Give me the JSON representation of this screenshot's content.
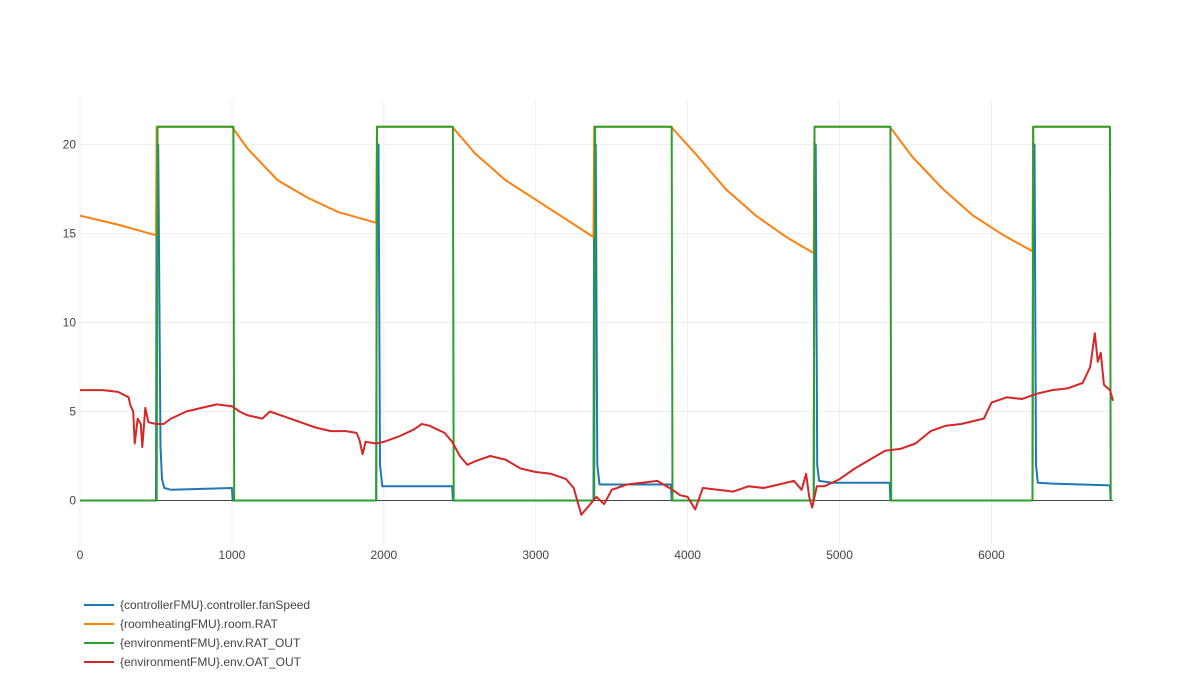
{
  "chart_data": {
    "type": "line",
    "title": "",
    "xlabel": "",
    "ylabel": "",
    "xlim": [
      0,
      6800
    ],
    "ylim": [
      -2.5,
      22.5
    ],
    "xticks": [
      0,
      1000,
      2000,
      3000,
      4000,
      5000,
      6000
    ],
    "xtick_labels": [
      "0",
      "1000",
      "2000",
      "3000",
      "4000",
      "5000",
      "6000"
    ],
    "yticks": [
      0,
      5,
      10,
      15,
      20
    ],
    "ytick_labels": [
      "0",
      "5",
      "10",
      "15",
      "20"
    ],
    "grid": true,
    "legend_position": "bottom-left",
    "series": [
      {
        "name": "{controllerFMU}.controller.fanSpeed",
        "color": "#1f77b4",
        "points": [
          [
            0,
            0
          ],
          [
            500,
            0
          ],
          [
            505,
            20
          ],
          [
            515,
            20
          ],
          [
            530,
            3
          ],
          [
            540,
            1.2
          ],
          [
            555,
            0.7
          ],
          [
            600,
            0.6
          ],
          [
            1000,
            0.7
          ],
          [
            1005,
            0
          ],
          [
            1950,
            0
          ],
          [
            1955,
            20
          ],
          [
            1965,
            20
          ],
          [
            1975,
            2
          ],
          [
            1990,
            0.8
          ],
          [
            2050,
            0.8
          ],
          [
            2450,
            0.8
          ],
          [
            2455,
            0
          ],
          [
            3380,
            0
          ],
          [
            3385,
            20
          ],
          [
            3395,
            20
          ],
          [
            3405,
            2
          ],
          [
            3420,
            0.9
          ],
          [
            3500,
            0.9
          ],
          [
            3890,
            0.9
          ],
          [
            3895,
            0
          ],
          [
            4830,
            0
          ],
          [
            4835,
            20
          ],
          [
            4843,
            20
          ],
          [
            4853,
            2
          ],
          [
            4865,
            1.1
          ],
          [
            4950,
            1.0
          ],
          [
            5330,
            1.0
          ],
          [
            5335,
            0
          ],
          [
            6270,
            0
          ],
          [
            6275,
            20
          ],
          [
            6283,
            20
          ],
          [
            6293,
            2
          ],
          [
            6305,
            1.0
          ],
          [
            6400,
            0.95
          ],
          [
            6780,
            0.85
          ],
          [
            6785,
            0
          ]
        ]
      },
      {
        "name": "{roomheatingFMU}.room.RAT",
        "color": "#ff7f0e",
        "points": [
          [
            0,
            16
          ],
          [
            250,
            15.5
          ],
          [
            500,
            14.9
          ],
          [
            505,
            21
          ],
          [
            1000,
            21
          ],
          [
            1100,
            19.8
          ],
          [
            1300,
            18
          ],
          [
            1500,
            17
          ],
          [
            1700,
            16.2
          ],
          [
            1950,
            15.6
          ],
          [
            1955,
            21
          ],
          [
            2450,
            21
          ],
          [
            2600,
            19.5
          ],
          [
            2800,
            18
          ],
          [
            3000,
            16.9
          ],
          [
            3200,
            15.8
          ],
          [
            3380,
            14.8
          ],
          [
            3385,
            21
          ],
          [
            3890,
            21
          ],
          [
            4050,
            19.5
          ],
          [
            4250,
            17.5
          ],
          [
            4450,
            16
          ],
          [
            4650,
            14.8
          ],
          [
            4830,
            13.9
          ],
          [
            4835,
            21
          ],
          [
            5330,
            21
          ],
          [
            5480,
            19.3
          ],
          [
            5680,
            17.5
          ],
          [
            5880,
            16
          ],
          [
            6080,
            14.9
          ],
          [
            6270,
            14.0
          ],
          [
            6275,
            21
          ],
          [
            6780,
            21
          ]
        ]
      },
      {
        "name": "{environmentFMU}.env.RAT_OUT",
        "color": "#2ca02c",
        "points": [
          [
            0,
            0
          ],
          [
            505,
            0
          ],
          [
            510,
            21
          ],
          [
            1010,
            21
          ],
          [
            1015,
            0
          ],
          [
            1950,
            0
          ],
          [
            1955,
            21
          ],
          [
            2455,
            21
          ],
          [
            2460,
            0
          ],
          [
            3385,
            0
          ],
          [
            3390,
            21
          ],
          [
            3895,
            21
          ],
          [
            3900,
            0
          ],
          [
            4830,
            0
          ],
          [
            4835,
            21
          ],
          [
            5335,
            21
          ],
          [
            5340,
            0
          ],
          [
            6270,
            0
          ],
          [
            6275,
            21
          ],
          [
            6780,
            21
          ],
          [
            6785,
            0
          ]
        ]
      },
      {
        "name": "{environmentFMU}.env.OAT_OUT",
        "color": "#d62728",
        "points": [
          [
            0,
            6.2
          ],
          [
            150,
            6.2
          ],
          [
            250,
            6.1
          ],
          [
            320,
            5.8
          ],
          [
            330,
            5.4
          ],
          [
            350,
            5.0
          ],
          [
            360,
            3.2
          ],
          [
            380,
            4.6
          ],
          [
            400,
            4.3
          ],
          [
            410,
            3.0
          ],
          [
            430,
            5.2
          ],
          [
            450,
            4.4
          ],
          [
            500,
            4.3
          ],
          [
            550,
            4.3
          ],
          [
            600,
            4.6
          ],
          [
            700,
            5.0
          ],
          [
            800,
            5.2
          ],
          [
            900,
            5.4
          ],
          [
            1000,
            5.3
          ],
          [
            1050,
            5.0
          ],
          [
            1100,
            4.8
          ],
          [
            1200,
            4.6
          ],
          [
            1250,
            5.0
          ],
          [
            1350,
            4.7
          ],
          [
            1450,
            4.4
          ],
          [
            1550,
            4.1
          ],
          [
            1650,
            3.9
          ],
          [
            1750,
            3.9
          ],
          [
            1820,
            3.8
          ],
          [
            1840,
            3.4
          ],
          [
            1860,
            2.6
          ],
          [
            1880,
            3.3
          ],
          [
            1950,
            3.2
          ],
          [
            2000,
            3.3
          ],
          [
            2100,
            3.6
          ],
          [
            2200,
            4.0
          ],
          [
            2250,
            4.3
          ],
          [
            2300,
            4.2
          ],
          [
            2350,
            4.0
          ],
          [
            2400,
            3.8
          ],
          [
            2450,
            3.3
          ],
          [
            2500,
            2.5
          ],
          [
            2550,
            2.0
          ],
          [
            2600,
            2.2
          ],
          [
            2700,
            2.5
          ],
          [
            2800,
            2.3
          ],
          [
            2900,
            1.8
          ],
          [
            3000,
            1.6
          ],
          [
            3100,
            1.5
          ],
          [
            3200,
            1.2
          ],
          [
            3250,
            0.7
          ],
          [
            3300,
            -0.8
          ],
          [
            3350,
            -0.3
          ],
          [
            3400,
            0.2
          ],
          [
            3450,
            -0.2
          ],
          [
            3500,
            0.6
          ],
          [
            3600,
            0.9
          ],
          [
            3700,
            1.0
          ],
          [
            3800,
            1.1
          ],
          [
            3900,
            0.6
          ],
          [
            3950,
            0.3
          ],
          [
            4000,
            0.2
          ],
          [
            4050,
            -0.5
          ],
          [
            4100,
            0.7
          ],
          [
            4200,
            0.6
          ],
          [
            4300,
            0.5
          ],
          [
            4400,
            0.8
          ],
          [
            4500,
            0.7
          ],
          [
            4600,
            0.9
          ],
          [
            4700,
            1.1
          ],
          [
            4750,
            0.6
          ],
          [
            4780,
            1.5
          ],
          [
            4800,
            0.2
          ],
          [
            4820,
            -0.4
          ],
          [
            4850,
            0.8
          ],
          [
            4900,
            0.8
          ],
          [
            5000,
            1.2
          ],
          [
            5100,
            1.8
          ],
          [
            5200,
            2.3
          ],
          [
            5300,
            2.8
          ],
          [
            5400,
            2.9
          ],
          [
            5500,
            3.2
          ],
          [
            5600,
            3.9
          ],
          [
            5700,
            4.2
          ],
          [
            5800,
            4.3
          ],
          [
            5900,
            4.5
          ],
          [
            5950,
            4.6
          ],
          [
            6000,
            5.5
          ],
          [
            6100,
            5.8
          ],
          [
            6200,
            5.7
          ],
          [
            6300,
            6.0
          ],
          [
            6400,
            6.2
          ],
          [
            6500,
            6.3
          ],
          [
            6600,
            6.6
          ],
          [
            6650,
            7.5
          ],
          [
            6680,
            9.4
          ],
          [
            6700,
            7.8
          ],
          [
            6720,
            8.3
          ],
          [
            6740,
            6.5
          ],
          [
            6780,
            6.2
          ],
          [
            6800,
            5.6
          ]
        ]
      }
    ]
  }
}
